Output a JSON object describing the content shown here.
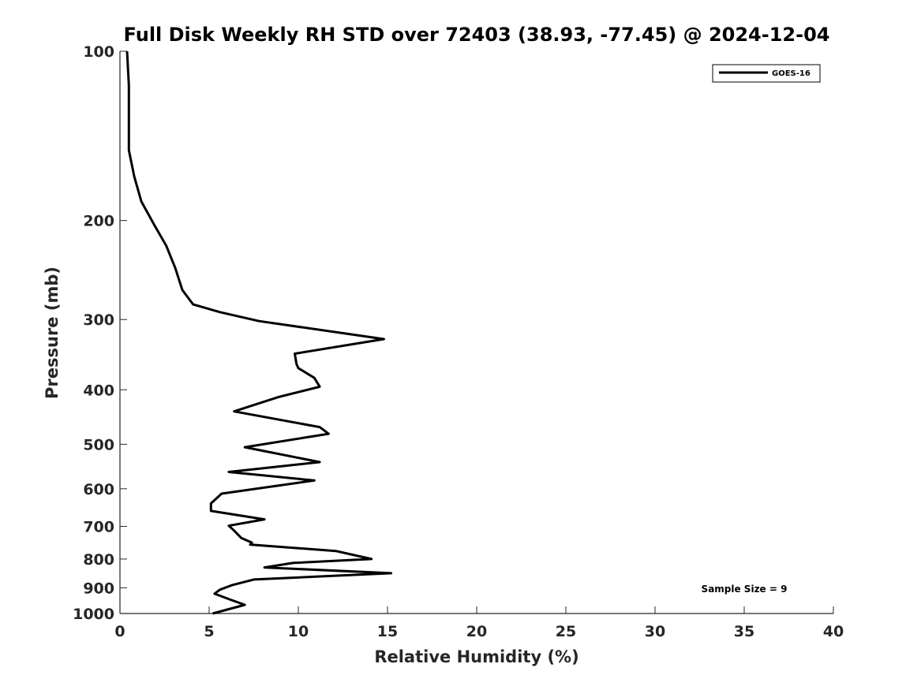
{
  "chart_data": {
    "type": "line",
    "title": "Full Disk Weekly RH STD over 72403 (38.93, -77.45) @ 2024-12-04",
    "xlabel": "Relative Humidity (%)",
    "ylabel": "Pressure (mb)",
    "xlim": [
      0,
      40
    ],
    "ylim": [
      100,
      1000
    ],
    "y_scale": "log",
    "y_reversed": true,
    "x_ticks": [
      0,
      5,
      10,
      15,
      20,
      25,
      30,
      35,
      40
    ],
    "y_ticks": [
      100,
      200,
      300,
      400,
      500,
      600,
      700,
      800,
      900,
      1000
    ],
    "grid": false,
    "legend_position": "top-right",
    "annotation": "Sample Size = 9",
    "series": [
      {
        "name": "GOES-16",
        "color": "#000000",
        "x": [
          0.4,
          0.5,
          0.5,
          0.8,
          1.2,
          1.9,
          2.6,
          3.1,
          3.5,
          4.1,
          5.6,
          7.8,
          14.8,
          9.8,
          9.9,
          10.0,
          10.9,
          11.2,
          8.9,
          6.4,
          11.2,
          11.7,
          7.0,
          11.2,
          6.1,
          10.9,
          5.7,
          5.1,
          5.1,
          8.1,
          6.1,
          6.4,
          6.8,
          7.4,
          7.3,
          12.1,
          14.1,
          9.7,
          8.1,
          15.2,
          7.5,
          6.3,
          5.6,
          5.3,
          6.2,
          7.0,
          5.2
        ],
        "y": [
          100,
          115,
          150,
          167,
          185,
          203,
          222,
          243,
          266,
          282,
          291,
          302,
          325,
          345,
          360,
          366,
          381,
          395,
          412,
          437,
          466,
          479,
          506,
          538,
          560,
          580,
          612,
          637,
          657,
          680,
          698,
          712,
          734,
          748,
          754,
          774,
          800,
          813,
          828,
          848,
          870,
          890,
          907,
          922,
          945,
          965,
          1000
        ]
      }
    ]
  }
}
